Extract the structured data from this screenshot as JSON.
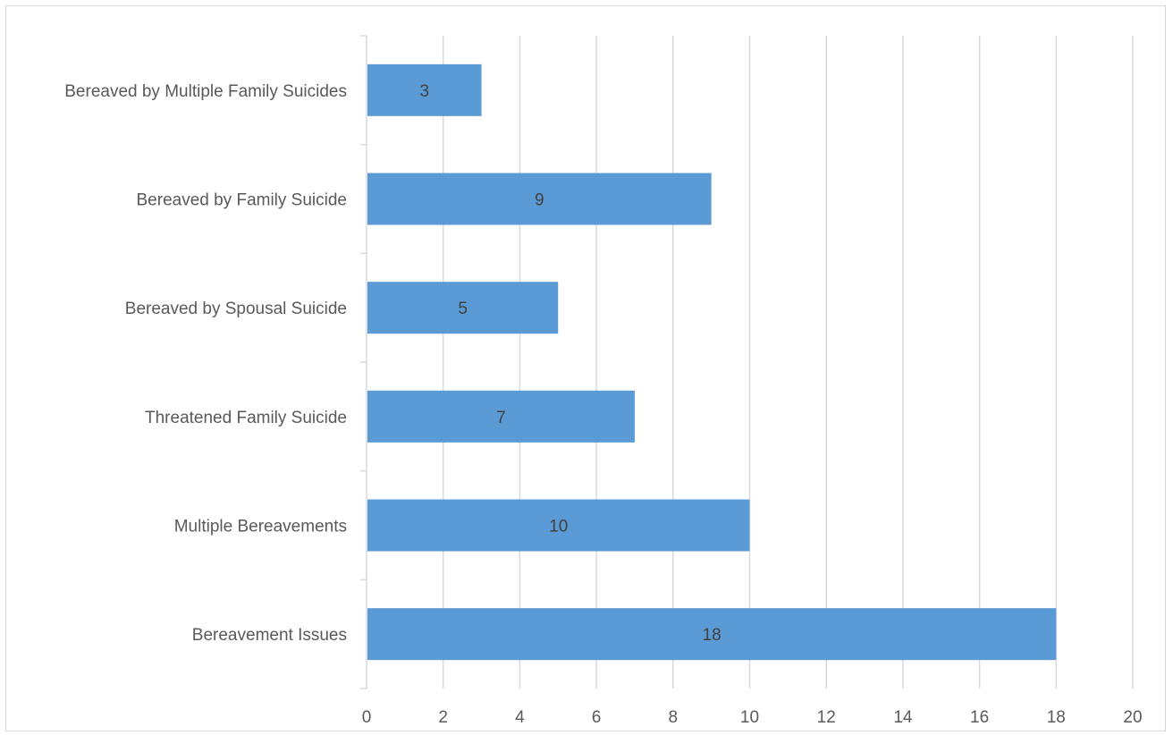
{
  "chart_data": {
    "type": "bar",
    "orientation": "horizontal",
    "categories": [
      "Bereaved by Multiple Family Suicides",
      "Bereaved by Family Suicide",
      "Bereaved by Spousal Suicide",
      "Threatened Family Suicide",
      "Multiple Bereavements",
      "Bereavement Issues"
    ],
    "values": [
      3,
      9,
      5,
      7,
      10,
      18
    ],
    "data_labels": [
      "3",
      "9",
      "5",
      "7",
      "10",
      "18"
    ],
    "x_ticks": [
      "0",
      "2",
      "4",
      "6",
      "8",
      "10",
      "12",
      "14",
      "16",
      "18",
      "20"
    ],
    "xlim": [
      0,
      20
    ],
    "title": "",
    "xlabel": "",
    "ylabel": "",
    "grid": "vertical",
    "legend": "none",
    "bar_color": "#5b9bd5",
    "grid_color": "#d9d9d9"
  }
}
